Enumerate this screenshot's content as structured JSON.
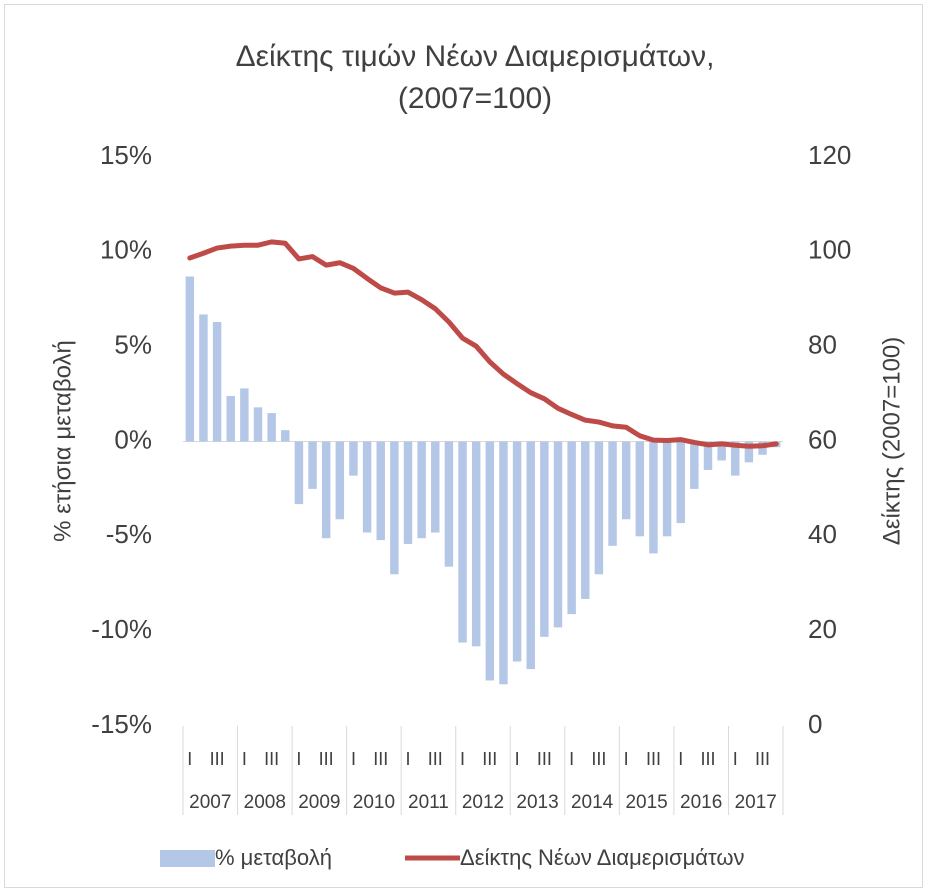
{
  "chart_data": {
    "type": "combo",
    "title": [
      "Δείκτης τιμών Νέων Διαμερισμάτων,",
      "(2007=100)"
    ],
    "ylabel": "% ετήσια μεταβολή",
    "y2label": "Δείκτης (2007=100)",
    "categories": [
      "I",
      null,
      "III",
      null,
      "I",
      null,
      "III",
      null,
      "I",
      null,
      "III",
      null,
      "I",
      null,
      "III",
      null,
      "I",
      null,
      "III",
      null,
      "I",
      null,
      "III",
      null,
      "I",
      null,
      "III",
      null,
      "I",
      null,
      "III",
      null,
      "I",
      null,
      "III",
      null,
      "I",
      null,
      "III",
      null,
      "I",
      null,
      "III",
      null
    ],
    "years": [
      "2007",
      "2008",
      "2009",
      "2010",
      "2011",
      "2012",
      "2013",
      "2014",
      "2015",
      "2016",
      "2017"
    ],
    "series": [
      {
        "name": "% μεταβολή",
        "type": "bar",
        "axis": "y",
        "color": "#b4c7e7",
        "values": [
          8.7,
          6.7,
          6.3,
          2.4,
          2.8,
          1.8,
          1.5,
          0.6,
          -3.3,
          -2.5,
          -5.1,
          -4.1,
          -1.8,
          -4.8,
          -5.2,
          -7.0,
          -5.4,
          -5.1,
          -4.8,
          -6.6,
          -10.6,
          -10.8,
          -12.6,
          -12.8,
          -11.6,
          -12.0,
          -10.3,
          -9.8,
          -9.1,
          -8.3,
          -7.0,
          -5.5,
          -4.1,
          -5.0,
          -5.9,
          -5.0,
          -4.3,
          -2.5,
          -1.5,
          -1.0,
          -1.8,
          -1.1,
          -0.7,
          -0.3
        ]
      },
      {
        "name": "Δείκτης Νέων Διαμερισμάτων",
        "type": "line",
        "axis": "y2",
        "color": "#be4b48",
        "values": [
          98.7,
          99.7,
          100.8,
          101.2,
          101.4,
          101.4,
          102.1,
          101.8,
          98.5,
          99.0,
          97.2,
          97.7,
          96.5,
          94.4,
          92.4,
          91.3,
          91.5,
          89.9,
          88.0,
          85.2,
          81.8,
          80.1,
          76.8,
          74.2,
          72.2,
          70.3,
          69.0,
          67.0,
          65.7,
          64.5,
          64.1,
          63.3,
          63.0,
          61.2,
          60.3,
          60.2,
          60.4,
          59.8,
          59.3,
          59.5,
          59.2,
          59.0,
          59.1,
          59.5
        ]
      }
    ],
    "ylim": [
      -15,
      15
    ],
    "yticks": [
      {
        "value": -15,
        "label": "-15%"
      },
      {
        "value": -10,
        "label": "-10%"
      },
      {
        "value": -5,
        "label": "-5%"
      },
      {
        "value": 0,
        "label": "0%"
      },
      {
        "value": 5,
        "label": "5%"
      },
      {
        "value": 10,
        "label": "10%"
      },
      {
        "value": 15,
        "label": "15%"
      }
    ],
    "y2lim": [
      0,
      120
    ],
    "y2ticks": [
      0,
      20,
      40,
      60,
      80,
      100,
      120
    ],
    "legend": "bottom"
  }
}
